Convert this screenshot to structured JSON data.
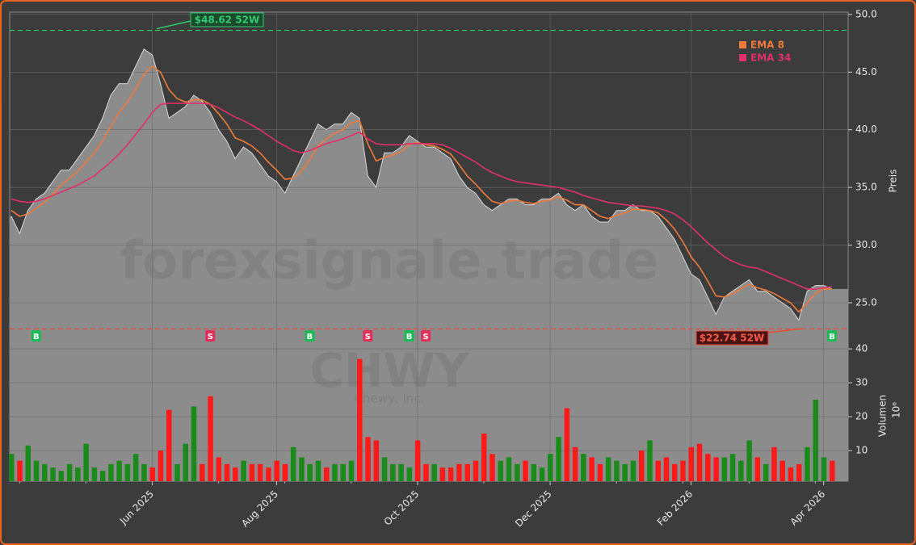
{
  "chart_data": {
    "type": "area",
    "watermark": "forexsignale.trade",
    "symbol": "CHWY",
    "company": "Chewy, Inc.",
    "ylabel": "Preis",
    "ylim": [
      21.15,
      50.2
    ],
    "yticks": [
      {
        "value": 25,
        "label": "25.0"
      },
      {
        "value": 30,
        "label": "30.0"
      },
      {
        "value": 35,
        "label": "35.0"
      },
      {
        "value": 40,
        "label": "40.0"
      },
      {
        "value": 45,
        "label": "45.0"
      },
      {
        "value": 50,
        "label": "50.0"
      }
    ],
    "grid": true,
    "color": "#8c8c8c",
    "line_color": "#d8d8d8",
    "categories": [
      null,
      null,
      null,
      null,
      null,
      null,
      null,
      null,
      null,
      null,
      null,
      null,
      null,
      null,
      null,
      null,
      null,
      "Jun 2025",
      null,
      null,
      null,
      null,
      null,
      null,
      null,
      null,
      null,
      null,
      null,
      null,
      null,
      null,
      "Aug 2025",
      null,
      null,
      null,
      null,
      null,
      null,
      null,
      null,
      null,
      null,
      null,
      null,
      null,
      null,
      null,
      null,
      "Oct 2025",
      null,
      null,
      null,
      null,
      null,
      null,
      null,
      null,
      null,
      null,
      null,
      null,
      null,
      null,
      null,
      "Dec 2025",
      null,
      null,
      null,
      null,
      null,
      null,
      null,
      null,
      null,
      null,
      null,
      null,
      null,
      null,
      null,
      null,
      "Feb 2026",
      null,
      null,
      null,
      null,
      null,
      null,
      null,
      null,
      null,
      null,
      null,
      null,
      null,
      null,
      null,
      "Apr 2026",
      null
    ],
    "values": [
      32.5,
      31,
      33,
      34,
      34.5,
      35.5,
      36.5,
      36.5,
      37.5,
      38.5,
      39.5,
      41,
      43,
      44,
      44,
      45.5,
      47,
      46.5,
      44,
      41,
      41.5,
      42,
      43,
      42.5,
      41.5,
      40,
      39,
      37.5,
      38.5,
      38,
      37,
      36,
      35.5,
      34.5,
      36,
      37.5,
      39,
      40.5,
      40,
      40.5,
      40.5,
      41.5,
      41,
      36,
      35,
      38,
      38,
      38.5,
      39.5,
      39,
      38.5,
      38.5,
      38,
      37.5,
      36,
      35,
      34.5,
      33.5,
      33,
      33.5,
      34,
      34,
      33.5,
      33.5,
      34,
      34,
      34.5,
      33.5,
      33,
      33.5,
      32.5,
      32,
      32,
      33,
      33,
      33.5,
      33,
      33,
      32.5,
      31.5,
      30.5,
      29,
      27.5,
      27,
      25.5,
      24,
      25.5,
      26,
      26.5,
      27,
      26,
      26,
      25.5,
      25,
      24.5,
      23.5,
      26,
      26.5,
      26.5,
      26.2
    ],
    "series": [
      {
        "name": "EMA 8",
        "color": "#f07a3a",
        "values": [
          33,
          32.5,
          32.7,
          33.2,
          33.7,
          34.4,
          35.2,
          35.8,
          36.4,
          37.2,
          38,
          39,
          40.3,
          41.5,
          42.4,
          43.5,
          44.8,
          45.5,
          45,
          43.5,
          42.7,
          42.4,
          42.6,
          42.6,
          42.2,
          41.4,
          40.5,
          39.3,
          39,
          38.6,
          38,
          37.2,
          36.5,
          35.7,
          35.8,
          36.4,
          37.4,
          38.6,
          39.2,
          39.7,
          40,
          40.6,
          40.8,
          38.8,
          37.3,
          37.6,
          37.8,
          38.1,
          38.7,
          38.9,
          38.7,
          38.6,
          38.3,
          37.9,
          37,
          36,
          35.3,
          34.5,
          33.8,
          33.6,
          33.8,
          33.9,
          33.7,
          33.6,
          33.8,
          33.9,
          34.2,
          33.9,
          33.5,
          33.5,
          33,
          32.5,
          32.3,
          32.6,
          32.8,
          33.1,
          33.1,
          33,
          32.8,
          32.2,
          31.4,
          30.3,
          29,
          28.1,
          26.9,
          25.6,
          25.5,
          25.8,
          26.2,
          26.6,
          26.3,
          26.1,
          25.8,
          25.4,
          25,
          24.2,
          25,
          25.8,
          26.2,
          26.2
        ]
      },
      {
        "name": "EMA 34",
        "color": "#e0306a",
        "values": [
          34,
          33.8,
          33.7,
          33.8,
          34,
          34.3,
          34.6,
          34.9,
          35.2,
          35.6,
          36,
          36.6,
          37.2,
          37.9,
          38.7,
          39.6,
          40.5,
          41.5,
          42.2,
          42.3,
          42.3,
          42.3,
          42.3,
          42.3,
          42.2,
          41.9,
          41.5,
          41.1,
          40.8,
          40.4,
          40,
          39.5,
          39,
          38.6,
          38.2,
          38,
          38.2,
          38.5,
          38.8,
          39,
          39.2,
          39.5,
          39.8,
          39.2,
          38.8,
          38.7,
          38.7,
          38.7,
          38.8,
          38.8,
          38.8,
          38.8,
          38.7,
          38.4,
          38,
          37.6,
          37.2,
          36.7,
          36.3,
          36,
          35.7,
          35.5,
          35.4,
          35.3,
          35.2,
          35.1,
          35,
          34.8,
          34.6,
          34.3,
          34.1,
          33.9,
          33.7,
          33.6,
          33.5,
          33.4,
          33.4,
          33.3,
          33.2,
          33,
          32.7,
          32.2,
          31.6,
          30.9,
          30.2,
          29.6,
          29,
          28.6,
          28.3,
          28.1,
          28,
          27.7,
          27.4,
          27.1,
          26.8,
          26.5,
          26.2,
          26.2,
          26.3,
          26.4
        ]
      }
    ],
    "high": {
      "value": 48.62,
      "label": "$48.62 52W",
      "color": "#2ecc71"
    },
    "low": {
      "value": 22.74,
      "label": "$22.74 52W",
      "color": "#e74c3c"
    },
    "signals": [
      {
        "index": 3,
        "label": "B"
      },
      {
        "index": 24,
        "label": "S"
      },
      {
        "index": 36,
        "label": "B"
      },
      {
        "index": 43,
        "label": "S"
      },
      {
        "index": 48,
        "label": "B"
      },
      {
        "index": 50,
        "label": "S"
      },
      {
        "index": 99,
        "label": "B"
      }
    ],
    "buy_color": "#1db954",
    "sell_color": "#e0305a",
    "volume": {
      "ylabel": "Volumen",
      "yunit": "10⁶",
      "ylim": [
        0.95,
        40.5
      ],
      "yticks": [
        10,
        20,
        30,
        40
      ],
      "up_color": "#1a8a1a",
      "down_color": "#ff1a1a",
      "values": [
        9,
        7,
        11.5,
        7,
        6,
        5,
        4,
        6,
        5,
        12,
        5,
        4,
        6,
        7,
        6,
        9,
        6,
        5,
        10,
        22,
        6,
        12,
        23,
        6,
        26,
        8,
        6,
        5,
        7,
        6,
        6,
        5,
        7,
        6,
        11,
        8,
        6,
        7,
        5,
        6,
        6,
        7,
        37,
        14,
        13,
        8,
        6,
        6,
        5,
        13,
        6,
        6,
        5,
        5,
        6,
        6,
        7,
        15,
        9,
        7,
        8,
        6,
        7,
        6,
        5,
        9,
        14,
        22.5,
        11,
        9,
        8,
        6,
        8,
        7,
        6,
        7,
        10,
        13,
        7,
        8,
        6,
        7,
        11,
        12,
        9,
        8,
        8,
        9,
        7,
        13,
        8,
        6,
        11,
        7,
        5,
        6,
        11,
        25,
        8,
        7
      ]
    }
  }
}
